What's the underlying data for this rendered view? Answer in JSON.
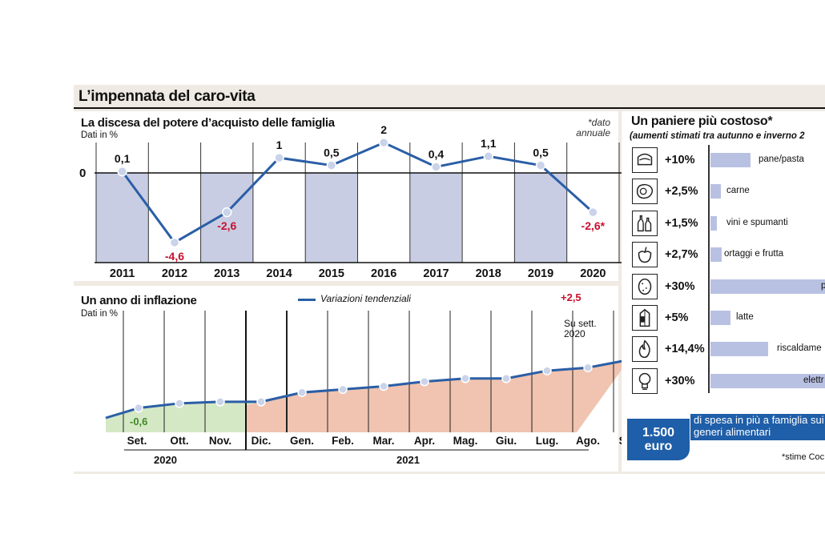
{
  "main_title": "L’impennata del caro-vita",
  "chart_data": [
    {
      "type": "line",
      "title": "La discesa del potere d’acquisto delle famiglia",
      "ylabel": "Dati in %",
      "note": "*dato annuale",
      "zero_label": "0",
      "x": [
        "2011",
        "2012",
        "2013",
        "2014",
        "2015",
        "2016",
        "2017",
        "2018",
        "2019",
        "2020"
      ],
      "values": [
        0.1,
        -4.6,
        -2.6,
        1,
        0.5,
        2,
        0.4,
        1.1,
        0.5,
        -2.6
      ],
      "value_labels": [
        "0,1",
        "-4,6",
        "-2,6",
        "1",
        "0,5",
        "2",
        "0,4",
        "1,1",
        "0,5",
        "-2,6*"
      ],
      "ylim": [
        -6,
        2.8
      ]
    },
    {
      "type": "line",
      "title": "Un anno di inflazione",
      "ylabel": "Dati in %",
      "legend": "Variazioni tendenziali",
      "months": [
        "Set.",
        "Ott.",
        "Nov.",
        "Dic.",
        "Gen.",
        "Feb.",
        "Mar.",
        "Apr.",
        "Mag.",
        "Giu.",
        "Lug.",
        "Ago.",
        "Set."
      ],
      "years": [
        "2020",
        "2021"
      ],
      "values": [
        -0.6,
        -0.3,
        -0.2,
        -0.2,
        0.4,
        0.6,
        0.8,
        1.1,
        1.3,
        1.3,
        1.8,
        2.0,
        2.5
      ],
      "start_label": "-0,6",
      "end_label": "+2,5",
      "end_note": "Su sett. 2020"
    }
  ],
  "basket": {
    "title": "Un paniere più costoso*",
    "subtitle": "(aumenti stimati tra autunno e inverno 2",
    "items": [
      {
        "icon": "bread-pasta-icon",
        "pct": "+10%",
        "label": "pane/pasta",
        "value": 10
      },
      {
        "icon": "meat-icon",
        "pct": "+2,5%",
        "label": "carne",
        "value": 2.5
      },
      {
        "icon": "wine-bottles-icon",
        "pct": "+1,5%",
        "label": "vini e spumanti",
        "value": 1.5
      },
      {
        "icon": "vegetables-icon",
        "pct": "+2,7%",
        "label": "ortaggi e frutta",
        "value": 2.7
      },
      {
        "icon": "potato-icon",
        "pct": "+30%",
        "label": "pa",
        "value": 30
      },
      {
        "icon": "milk-carton-icon",
        "pct": "+5%",
        "label": "latte",
        "value": 5
      },
      {
        "icon": "flame-icon",
        "pct": "+14,4%",
        "label": "riscaldame",
        "value": 14.4
      },
      {
        "icon": "lightbulb-icon",
        "pct": "+30%",
        "label": "elettr",
        "value": 30
      }
    ],
    "badge_value": "1.500",
    "badge_unit": "euro",
    "badge_text": "di spesa in più a famiglia sui generi alimentari",
    "source": "*stime Coc"
  },
  "colors": {
    "line": "#2a5ea6",
    "red": "#c8102e",
    "green": "#5ea838",
    "band": "#c8cde3",
    "red_fill": "#f0c4b0",
    "green_fill": "#d5e8c6",
    "bar": "#b9c1e2",
    "badge": "#1f5ea8"
  }
}
